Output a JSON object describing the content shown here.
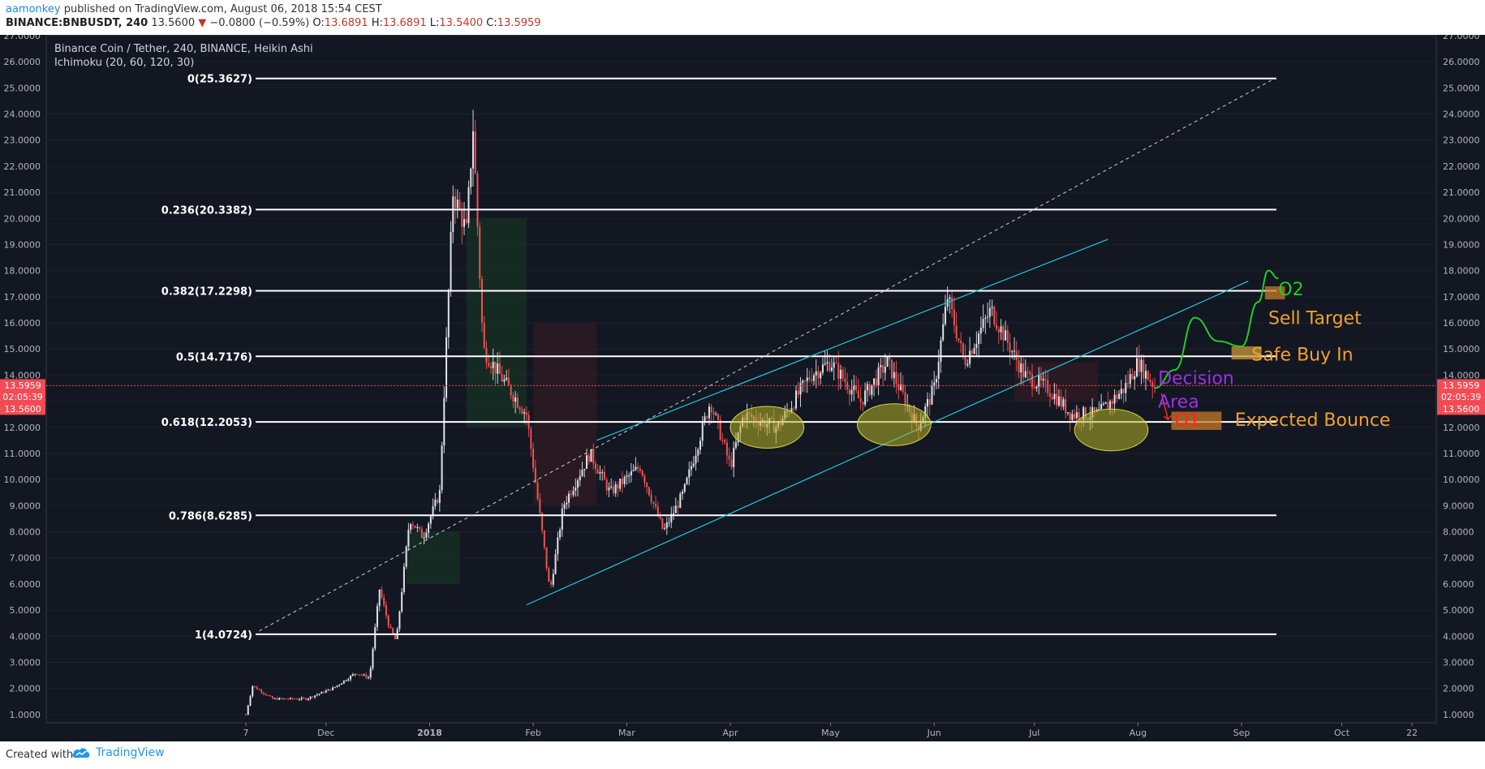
{
  "header": {
    "author": "aamonkey",
    "published": "published on TradingView.com, August 06, 2018 15:54 CEST",
    "symbol": "BINANCE:BNBUSDT, 240",
    "last": "13.5600",
    "change": "−0.0800 (−0.59%)",
    "o_label": "O:",
    "o_value": "13.6891",
    "h_label": "H:",
    "h_value": "13.6891",
    "l_label": "L:",
    "l_value": "13.5400",
    "c_label": "C:",
    "c_value": "13.5959"
  },
  "legend": {
    "title": "Binance Coin / Tether, 240, BINANCE, Heikin Ashi",
    "indicator": "Ichimoku (20, 60, 120, 30)"
  },
  "price_tags": [
    "13.5959",
    "02:05:39",
    "13.5600"
  ],
  "footer": {
    "created": "Created with",
    "brand": "TradingView"
  },
  "colors": {
    "background": "#131722",
    "fib_line": "#ffffff",
    "channel": "#26c6da",
    "up_candle": "#e0e3eb",
    "down_candle": "#ef5350",
    "price_tag": "#f44b55",
    "support_ellipse": "#b5b528",
    "annotation_green": "#22cc22",
    "annotation_orange": "#f0a030",
    "annotation_purple": "#9933dd",
    "annotation_red": "#ff2222",
    "brand_blue": "#2196f3"
  },
  "icons": {
    "brand": "tradingview-cloud-icon",
    "down_arrow": "down-triangle-icon"
  },
  "chart_data": {
    "type": "candlestick",
    "title": "Binance Coin / Tether, 240, BINANCE, Heikin Ashi",
    "ylim": [
      0.0,
      27.0
    ],
    "y_ticks": [
      "1.0000",
      "2.0000",
      "3.0000",
      "4.0000",
      "5.0000",
      "6.0000",
      "7.0000",
      "8.0000",
      "9.0000",
      "10.0000",
      "11.0000",
      "12.0000",
      "13.0000",
      "14.0000",
      "15.0000",
      "16.0000",
      "17.0000",
      "18.0000",
      "19.0000",
      "20.0000",
      "21.0000",
      "22.0000",
      "23.0000",
      "24.0000",
      "25.0000",
      "26.0000",
      "27.0000"
    ],
    "x_ticks": [
      {
        "label": "7",
        "date": "2017-11-07"
      },
      {
        "label": "Dec",
        "date": "2017-12-01"
      },
      {
        "label": "2018",
        "date": "2018-01-01",
        "bold": true
      },
      {
        "label": "Feb",
        "date": "2018-02-01"
      },
      {
        "label": "Mar",
        "date": "2018-03-01"
      },
      {
        "label": "Apr",
        "date": "2018-04-01"
      },
      {
        "label": "May",
        "date": "2018-05-01"
      },
      {
        "label": "Jun",
        "date": "2018-06-01"
      },
      {
        "label": "Jul",
        "date": "2018-07-01"
      },
      {
        "label": "Aug",
        "date": "2018-08-01"
      },
      {
        "label": "Sep",
        "date": "2018-09-01"
      },
      {
        "label": "Oct",
        "date": "2018-10-01"
      },
      {
        "label": "22",
        "date": "2018-10-22"
      }
    ],
    "price_path": [
      [
        "2017-11-07",
        1.0
      ],
      [
        "2017-11-09",
        2.1
      ],
      [
        "2017-11-15",
        1.6
      ],
      [
        "2017-11-25",
        1.6
      ],
      [
        "2017-12-03",
        2.0
      ],
      [
        "2017-12-10",
        2.6
      ],
      [
        "2017-12-14",
        2.4
      ],
      [
        "2017-12-17",
        5.8
      ],
      [
        "2017-12-20",
        4.3
      ],
      [
        "2017-12-22",
        3.8
      ],
      [
        "2017-12-26",
        8.5
      ],
      [
        "2017-12-30",
        7.8
      ],
      [
        "2018-01-04",
        9.5
      ],
      [
        "2018-01-08",
        21.0
      ],
      [
        "2018-01-12",
        19.5
      ],
      [
        "2018-01-14",
        23.5
      ],
      [
        "2018-01-17",
        15.0
      ],
      [
        "2018-01-22",
        14.0
      ],
      [
        "2018-01-30",
        12.5
      ],
      [
        "2018-02-06",
        5.7
      ],
      [
        "2018-02-10",
        9.0
      ],
      [
        "2018-02-18",
        11.0
      ],
      [
        "2018-02-24",
        9.5
      ],
      [
        "2018-03-05",
        10.5
      ],
      [
        "2018-03-12",
        8.0
      ],
      [
        "2018-03-18",
        9.5
      ],
      [
        "2018-03-26",
        13.0
      ],
      [
        "2018-04-01",
        10.5
      ],
      [
        "2018-04-05",
        12.5
      ],
      [
        "2018-04-15",
        12.0
      ],
      [
        "2018-04-25",
        14.0
      ],
      [
        "2018-05-01",
        14.5
      ],
      [
        "2018-05-10",
        13.0
      ],
      [
        "2018-05-18",
        14.5
      ],
      [
        "2018-05-27",
        12.0
      ],
      [
        "2018-06-01",
        13.5
      ],
      [
        "2018-06-05",
        17.0
      ],
      [
        "2018-06-10",
        14.5
      ],
      [
        "2018-06-18",
        16.5
      ],
      [
        "2018-06-28",
        14.0
      ],
      [
        "2018-07-05",
        13.5
      ],
      [
        "2018-07-12",
        12.5
      ],
      [
        "2018-07-20",
        12.5
      ],
      [
        "2018-07-28",
        13.5
      ],
      [
        "2018-08-01",
        14.5
      ],
      [
        "2018-08-06",
        13.56
      ]
    ],
    "fib_levels": [
      {
        "label": "0(25.3627)",
        "value": 25.3627
      },
      {
        "label": "0.236(20.3382)",
        "value": 20.3382
      },
      {
        "label": "0.382(17.2298)",
        "value": 17.2298
      },
      {
        "label": "0.5(14.7176)",
        "value": 14.7176
      },
      {
        "label": "0.618(12.2053)",
        "value": 12.2053
      },
      {
        "label": "0.786(8.6285)",
        "value": 8.6285
      },
      {
        "label": "1(4.0724)",
        "value": 4.0724
      }
    ],
    "channel_lines": [
      {
        "from": [
          "2018-02-20",
          11.5
        ],
        "to": [
          "2018-07-23",
          19.2
        ]
      },
      {
        "from": [
          "2018-01-30",
          5.2
        ],
        "to": [
          "2018-09-03",
          17.6
        ]
      }
    ],
    "dashed_trend": {
      "from": [
        "2017-11-11",
        4.2
      ],
      "to": [
        "2018-09-10",
        25.3
      ]
    },
    "support_zones": [
      {
        "center": [
          "2018-04-12",
          12.0
        ],
        "width_days": 22,
        "height": 1.6
      },
      {
        "center": [
          "2018-05-20",
          12.1
        ],
        "width_days": 22,
        "height": 1.6
      },
      {
        "center": [
          "2018-07-24",
          11.9
        ],
        "width_days": 22,
        "height": 1.6
      }
    ],
    "annotations": [
      {
        "text": "O2",
        "pos": [
          "2018-09-12",
          17.3
        ],
        "color": "#22cc22"
      },
      {
        "text": "Sell Target",
        "pos": [
          "2018-09-09",
          16.2
        ],
        "color": "#f0a030"
      },
      {
        "text": "Safe Buy In",
        "pos": [
          "2018-09-04",
          14.8
        ],
        "color": "#f0a030"
      },
      {
        "text": "Decision",
        "pos": [
          "2018-08-07",
          13.9
        ],
        "color": "#9933dd"
      },
      {
        "text": "Area",
        "pos": [
          "2018-08-07",
          13.0
        ],
        "color": "#9933dd"
      },
      {
        "text": "O1",
        "pos": [
          "2018-08-12",
          12.3
        ],
        "color": "#ff2222"
      },
      {
        "text": "Expected Bounce",
        "pos": [
          "2018-08-30",
          12.3
        ],
        "color": "#f0a030"
      }
    ],
    "target_boxes": [
      {
        "from": [
          "2018-08-11",
          12.6
        ],
        "to": [
          "2018-08-26",
          11.9
        ],
        "color": "#c87a28"
      },
      {
        "from": [
          "2018-08-29",
          15.1
        ],
        "to": [
          "2018-09-07",
          14.6
        ],
        "color": "#c89a3a"
      },
      {
        "from": [
          "2018-09-08",
          17.4
        ],
        "to": [
          "2018-09-14",
          16.9
        ],
        "color": "#c87a28"
      }
    ],
    "projection_path": [
      [
        "2018-08-06",
        13.5
      ],
      [
        "2018-08-12",
        14.2
      ],
      [
        "2018-08-18",
        16.2
      ],
      [
        "2018-08-25",
        15.3
      ],
      [
        "2018-09-01",
        15.1
      ],
      [
        "2018-09-06",
        16.8
      ],
      [
        "2018-09-09",
        18.0
      ],
      [
        "2018-09-12",
        17.7
      ]
    ]
  }
}
